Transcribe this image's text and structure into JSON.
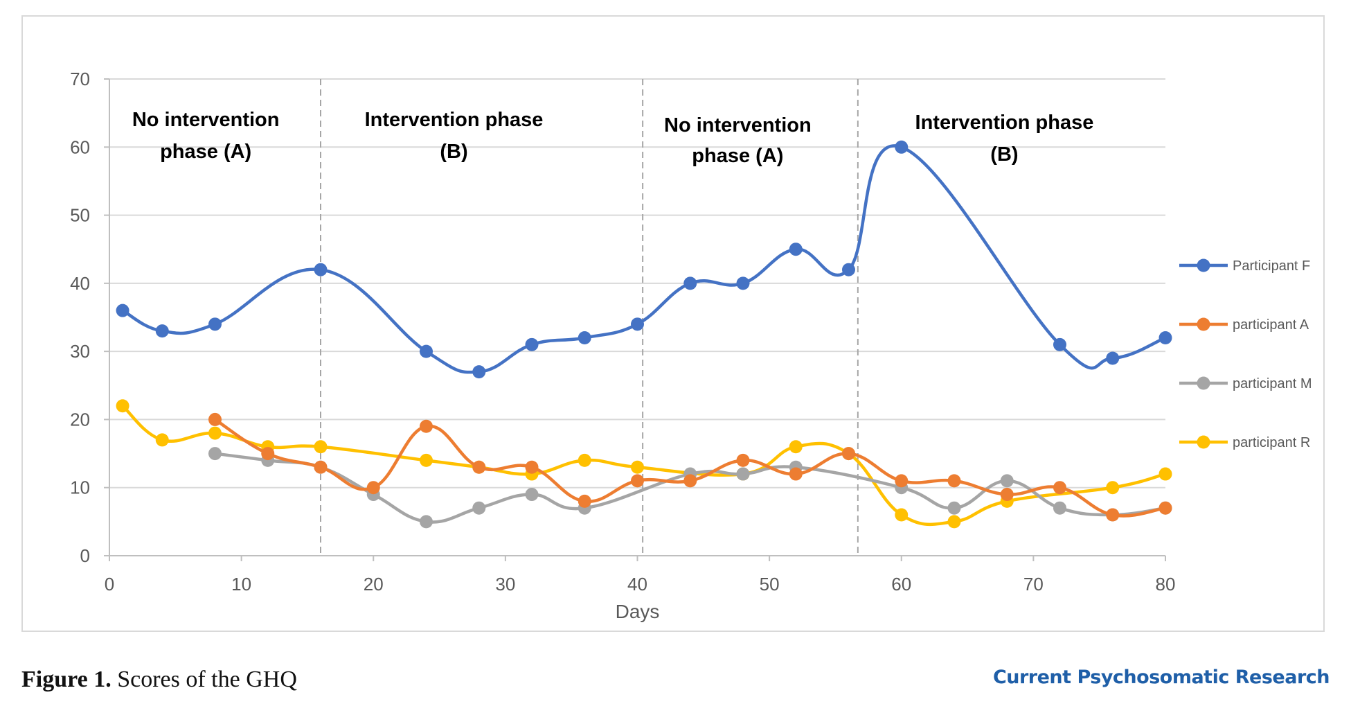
{
  "caption": {
    "label": "Figure 1.",
    "text": "Scores of the GHQ"
  },
  "journal": "Current Psychosomatic Research",
  "chart_data": {
    "type": "line",
    "title": "",
    "xlabel": "Days",
    "ylabel": "",
    "xlim": [
      0,
      80
    ],
    "ylim": [
      0,
      70
    ],
    "x_ticks": [
      0,
      10,
      20,
      30,
      40,
      50,
      60,
      70,
      80
    ],
    "y_ticks": [
      0,
      10,
      20,
      30,
      40,
      50,
      60,
      70
    ],
    "grid": "horizontal",
    "legend": "right",
    "phase_dividers": [
      16,
      40.4,
      56.7
    ],
    "phases": [
      {
        "line1": "No intervention",
        "line2": "phase (A)",
        "center": 7.3
      },
      {
        "line1": "Intervention phase",
        "line2": "(B)",
        "center": 26.1
      },
      {
        "line1": "No intervention",
        "line2": "phase (A)",
        "center": 47.6
      },
      {
        "line1": "Intervention phase",
        "line2": "(B)",
        "center": 67.8
      }
    ],
    "series": [
      {
        "name": "Participant F",
        "color": "#4472c4",
        "points": [
          [
            1,
            36
          ],
          [
            4,
            33
          ],
          [
            8,
            34
          ],
          [
            16,
            42
          ],
          [
            24,
            30
          ],
          [
            28,
            27
          ],
          [
            32,
            31
          ],
          [
            36,
            32
          ],
          [
            40,
            34
          ],
          [
            44,
            40
          ],
          [
            48,
            40
          ],
          [
            52,
            45
          ],
          [
            56,
            42
          ],
          [
            60,
            60
          ],
          [
            72,
            31
          ],
          [
            76,
            29
          ],
          [
            80,
            32
          ]
        ]
      },
      {
        "name": "participant A",
        "color": "#ed7d31",
        "points": [
          [
            8,
            20
          ],
          [
            12,
            15
          ],
          [
            16,
            13
          ],
          [
            20,
            10
          ],
          [
            24,
            19
          ],
          [
            28,
            13
          ],
          [
            32,
            13
          ],
          [
            36,
            8
          ],
          [
            40,
            11
          ],
          [
            44,
            11
          ],
          [
            48,
            14
          ],
          [
            52,
            12
          ],
          [
            56,
            15
          ],
          [
            60,
            11
          ],
          [
            64,
            11
          ],
          [
            68,
            9
          ],
          [
            72,
            10
          ],
          [
            76,
            6
          ],
          [
            80,
            7
          ]
        ]
      },
      {
        "name": "participant M",
        "color": "#a5a5a5",
        "points": [
          [
            8,
            15
          ],
          [
            12,
            14
          ],
          [
            16,
            13
          ],
          [
            20,
            9
          ],
          [
            24,
            5
          ],
          [
            28,
            7
          ],
          [
            32,
            9
          ],
          [
            36,
            7
          ],
          [
            44,
            12
          ],
          [
            48,
            12
          ],
          [
            52,
            13
          ],
          [
            60,
            10
          ],
          [
            64,
            7
          ],
          [
            68,
            11
          ],
          [
            72,
            7
          ],
          [
            76,
            6
          ],
          [
            80,
            7
          ]
        ]
      },
      {
        "name": "participant R",
        "color": "#ffc000",
        "points": [
          [
            1,
            22
          ],
          [
            4,
            17
          ],
          [
            8,
            18
          ],
          [
            12,
            16
          ],
          [
            16,
            16
          ],
          [
            24,
            14
          ],
          [
            28,
            13
          ],
          [
            32,
            12
          ],
          [
            36,
            14
          ],
          [
            40,
            13
          ],
          [
            48,
            12
          ],
          [
            52,
            16
          ],
          [
            56,
            15
          ],
          [
            60,
            6
          ],
          [
            64,
            5
          ],
          [
            68,
            8
          ],
          [
            76,
            10
          ],
          [
            80,
            12
          ]
        ]
      }
    ]
  }
}
